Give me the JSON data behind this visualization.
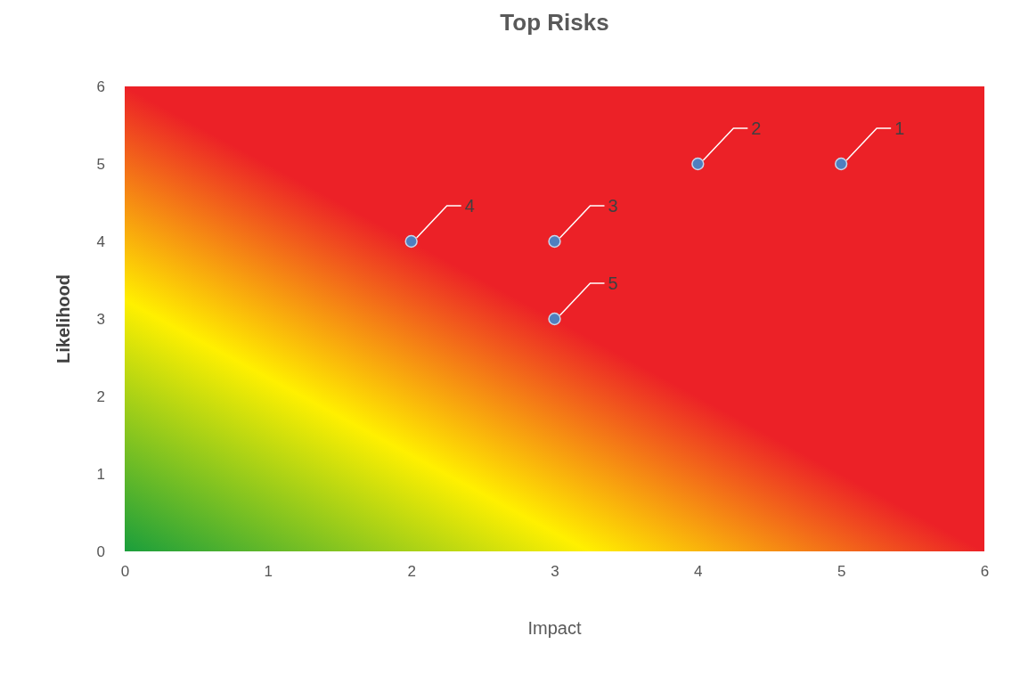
{
  "chart_data": {
    "type": "scatter",
    "title": "Top Risks",
    "xlabel": "Impact",
    "ylabel": "Likelihood",
    "x": [
      5,
      4,
      3,
      2,
      3
    ],
    "series": [
      {
        "color": "#4f7fbf",
        "values": [
          5,
          5,
          4,
          4,
          3
        ]
      }
    ],
    "xlim": [
      0,
      6
    ],
    "ylim": [
      0,
      6
    ],
    "xticks": [
      0,
      1,
      2,
      3,
      4,
      5,
      6
    ],
    "yticks": [
      0,
      1,
      2,
      3,
      4,
      5,
      6
    ],
    "grid": false,
    "marker": "circle",
    "annotations": [
      {
        "text": "1",
        "x": 5,
        "y": 5
      },
      {
        "text": "2",
        "x": 4,
        "y": 5
      },
      {
        "text": "3",
        "x": 3,
        "y": 4
      },
      {
        "text": "4",
        "x": 2,
        "y": 4
      },
      {
        "text": "5",
        "x": 3,
        "y": 3
      }
    ]
  }
}
